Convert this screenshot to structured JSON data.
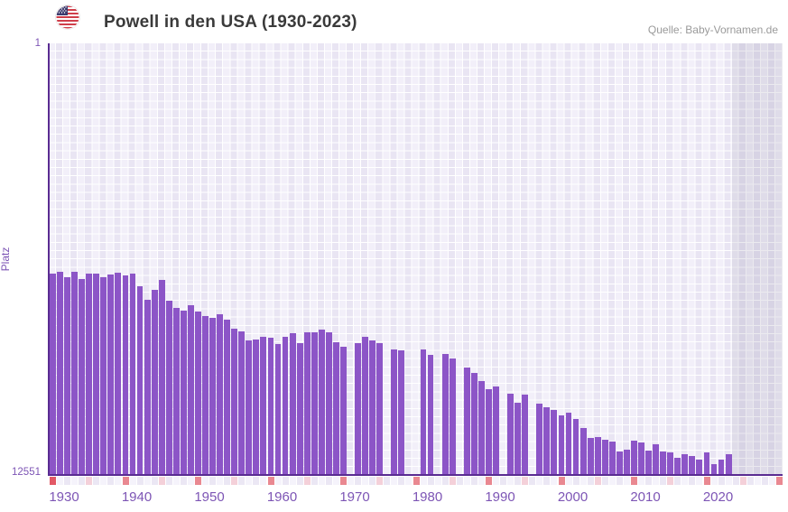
{
  "header": {
    "title": "Powell in den USA (1930-2023)",
    "source": "Quelle: Baby-Vornamen.de",
    "flag_icon": "us-flag-round-icon"
  },
  "colors": {
    "bar": "#8c55c7",
    "axis_line": "#5a2c92",
    "axis_text": "#7d55b5",
    "title_text": "#3a3a3a",
    "source_text": "#9a9a9a",
    "plot_bg_light": "#f2eff9",
    "plot_bg_dark": "#e9e5f3",
    "band_decade": "#e98891",
    "band_half_decade": "#f4d0d9",
    "band_first": "#e25865"
  },
  "chart_data": {
    "type": "bar",
    "title": "Powell in den USA (1930-2023)",
    "source": "Quelle: Baby-Vornamen.de",
    "xlabel": "",
    "ylabel": "Platz",
    "y_axis": {
      "top_label": "1",
      "bottom_label": "12551",
      "min": 1,
      "max": 12551,
      "inverted": true,
      "note": "rank 1 at top, bars grow upward from bottom; taller bar = better rank"
    },
    "x_range": [
      1930,
      2030
    ],
    "last_data_year": 2023,
    "future_region_start": 2024,
    "x_ticks": [
      "1930",
      "1940",
      "1950",
      "1960",
      "1970",
      "1980",
      "1990",
      "2000",
      "2010",
      "2020"
    ],
    "missing_years": [
      1971,
      1976,
      1979,
      1980,
      1983,
      1986,
      1992,
      1996
    ],
    "points": [
      [
        1930,
        6720
      ],
      [
        1931,
        6660
      ],
      [
        1932,
        6810
      ],
      [
        1933,
        6660
      ],
      [
        1934,
        6870
      ],
      [
        1935,
        6700
      ],
      [
        1936,
        6700
      ],
      [
        1937,
        6820
      ],
      [
        1938,
        6740
      ],
      [
        1939,
        6680
      ],
      [
        1940,
        6760
      ],
      [
        1941,
        6710
      ],
      [
        1942,
        7090
      ],
      [
        1943,
        7460
      ],
      [
        1944,
        7180
      ],
      [
        1945,
        6890
      ],
      [
        1946,
        7500
      ],
      [
        1947,
        7710
      ],
      [
        1948,
        7790
      ],
      [
        1949,
        7640
      ],
      [
        1950,
        7810
      ],
      [
        1951,
        7950
      ],
      [
        1952,
        7990
      ],
      [
        1953,
        7900
      ],
      [
        1954,
        8050
      ],
      [
        1955,
        8320
      ],
      [
        1956,
        8390
      ],
      [
        1957,
        8650
      ],
      [
        1958,
        8620
      ],
      [
        1959,
        8560
      ],
      [
        1960,
        8590
      ],
      [
        1961,
        8750
      ],
      [
        1962,
        8540
      ],
      [
        1963,
        8450
      ],
      [
        1964,
        8740
      ],
      [
        1965,
        8430
      ],
      [
        1966,
        8410
      ],
      [
        1967,
        8340
      ],
      [
        1968,
        8430
      ],
      [
        1969,
        8710
      ],
      [
        1970,
        8850
      ],
      [
        1972,
        8740
      ],
      [
        1973,
        8540
      ],
      [
        1974,
        8650
      ],
      [
        1975,
        8740
      ],
      [
        1977,
        8920
      ],
      [
        1978,
        8950
      ],
      [
        1981,
        8930
      ],
      [
        1982,
        9080
      ],
      [
        1984,
        9040
      ],
      [
        1985,
        9190
      ],
      [
        1987,
        9440
      ],
      [
        1988,
        9600
      ],
      [
        1989,
        9840
      ],
      [
        1990,
        10080
      ],
      [
        1991,
        9990
      ],
      [
        1993,
        10210
      ],
      [
        1994,
        10470
      ],
      [
        1995,
        10240
      ],
      [
        1997,
        10490
      ],
      [
        1998,
        10600
      ],
      [
        1999,
        10690
      ],
      [
        2000,
        10840
      ],
      [
        2001,
        10750
      ],
      [
        2002,
        10950
      ],
      [
        2003,
        11220
      ],
      [
        2004,
        11500
      ],
      [
        2005,
        11480
      ],
      [
        2006,
        11540
      ],
      [
        2007,
        11600
      ],
      [
        2008,
        11890
      ],
      [
        2009,
        11830
      ],
      [
        2010,
        11570
      ],
      [
        2011,
        11630
      ],
      [
        2012,
        11870
      ],
      [
        2013,
        11690
      ],
      [
        2014,
        11890
      ],
      [
        2015,
        11920
      ],
      [
        2016,
        12090
      ],
      [
        2017,
        11980
      ],
      [
        2018,
        12020
      ],
      [
        2019,
        12130
      ],
      [
        2020,
        11910
      ],
      [
        2021,
        12260
      ],
      [
        2022,
        12130
      ],
      [
        2023,
        11980
      ]
    ]
  }
}
